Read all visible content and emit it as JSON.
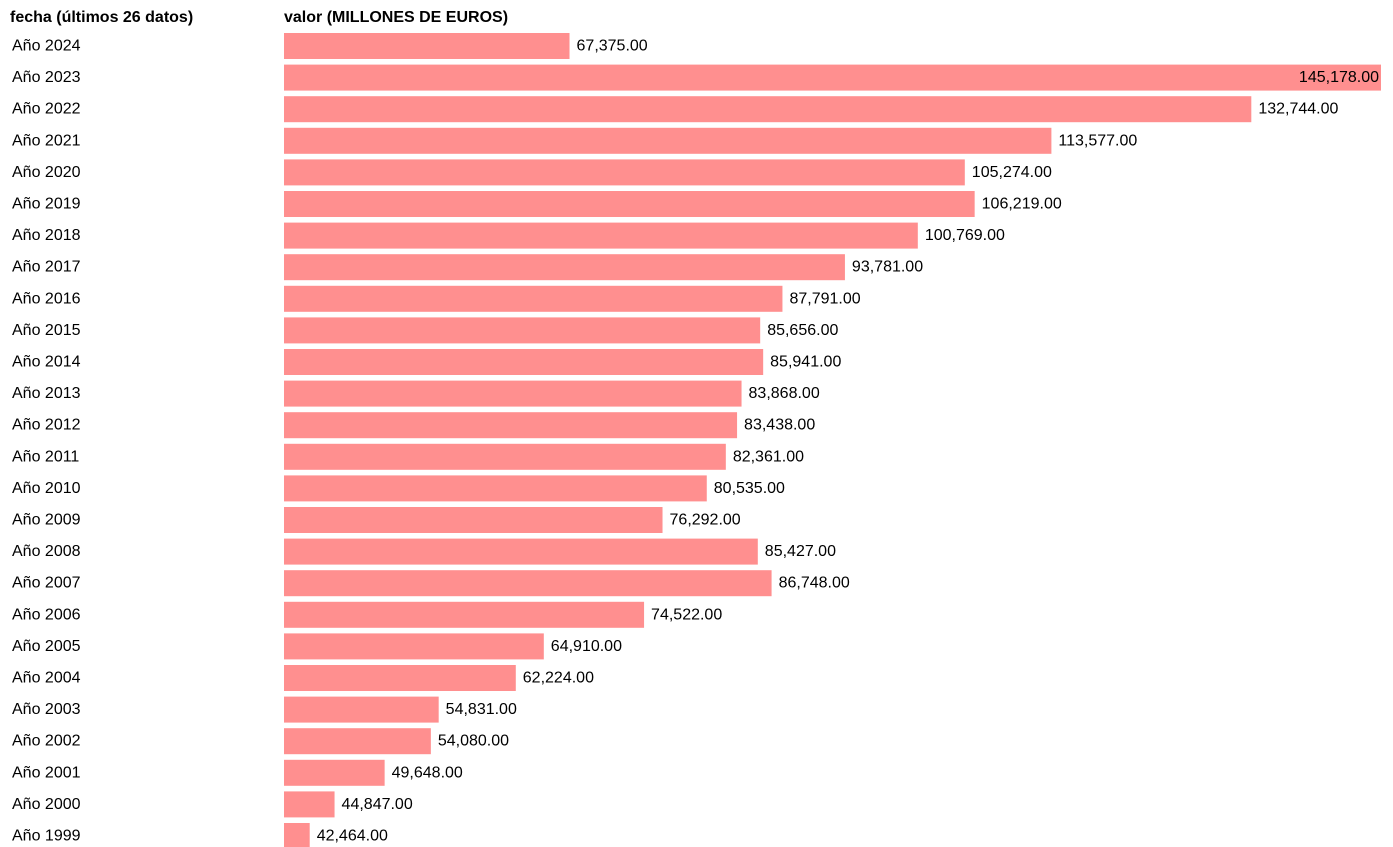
{
  "headers": {
    "date": "fecha (últimos 26 datos)",
    "value": "valor (MILLONES DE EUROS)"
  },
  "chart_data": {
    "type": "bar",
    "orientation": "horizontal",
    "bar_color": "#ff8f8f",
    "xlim": [
      40000,
      145178
    ],
    "categories": [
      "Año 2024",
      "Año 2023",
      "Año 2022",
      "Año 2021",
      "Año 2020",
      "Año 2019",
      "Año 2018",
      "Año 2017",
      "Año 2016",
      "Año 2015",
      "Año 2014",
      "Año 2013",
      "Año 2012",
      "Año 2011",
      "Año 2010",
      "Año 2009",
      "Año 2008",
      "Año 2007",
      "Año 2006",
      "Año 2005",
      "Año 2004",
      "Año 2003",
      "Año 2002",
      "Año 2001",
      "Año 2000",
      "Año 1999"
    ],
    "values": [
      67375,
      145178,
      132744,
      113577,
      105274,
      106219,
      100769,
      93781,
      87791,
      85656,
      85941,
      83868,
      83438,
      82361,
      80535,
      76292,
      85427,
      86748,
      74522,
      64910,
      62224,
      54831,
      54080,
      49648,
      44847,
      42464
    ],
    "labels": [
      "67,375.00",
      "145,178.00",
      "132,744.00",
      "113,577.00",
      "105,274.00",
      "106,219.00",
      "100,769.00",
      "93,781.00",
      "87,791.00",
      "85,656.00",
      "85,941.00",
      "83,868.00",
      "83,438.00",
      "82,361.00",
      "80,535.00",
      "76,292.00",
      "85,427.00",
      "86,748.00",
      "74,522.00",
      "64,910.00",
      "62,224.00",
      "54,831.00",
      "54,080.00",
      "49,648.00",
      "44,847.00",
      "42,464.00"
    ]
  }
}
